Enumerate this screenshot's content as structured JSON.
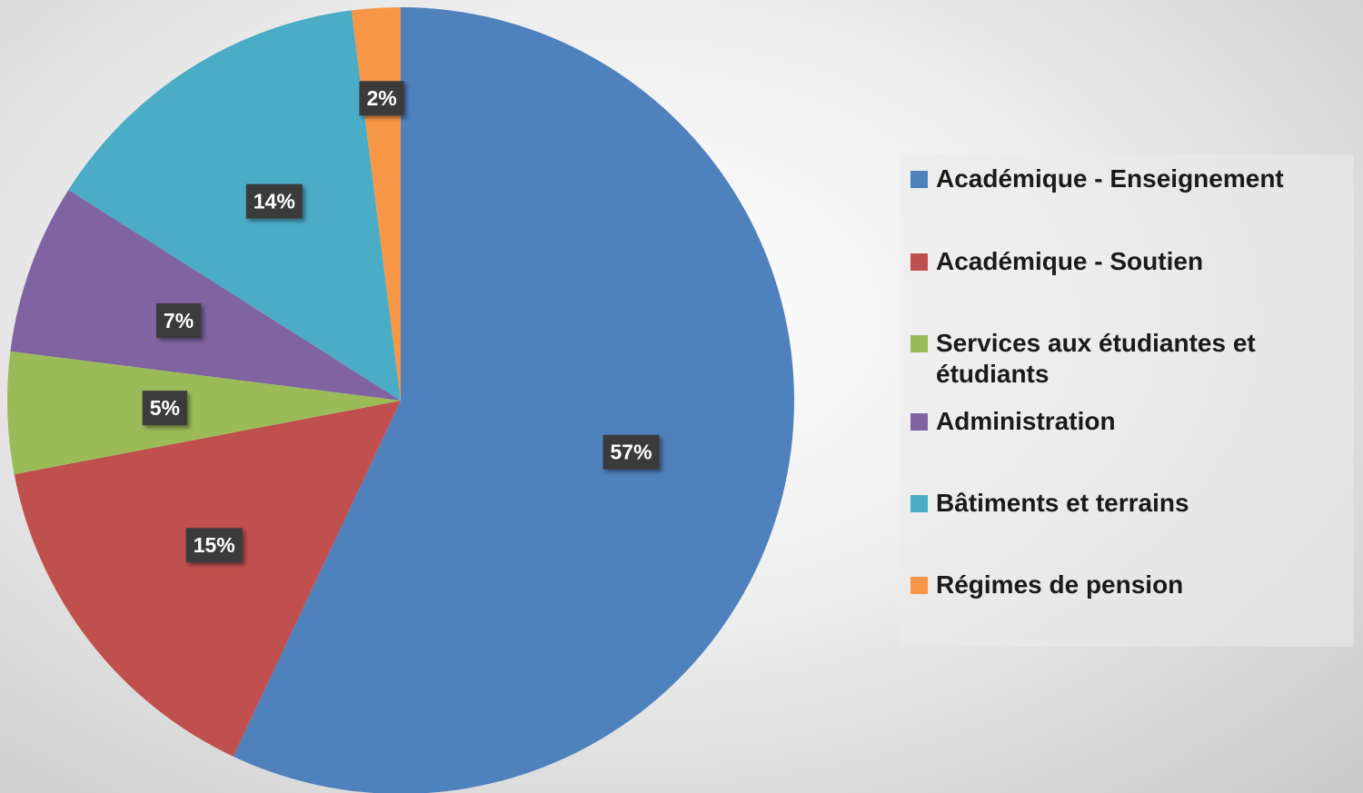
{
  "chart_data": {
    "type": "pie",
    "categories": [
      "Académique - Enseignement",
      "Académique - Soutien",
      "Services aux étudiantes et étudiants",
      "Administration",
      "Bâtiments et terrains",
      "Régimes de pension"
    ],
    "values": [
      57,
      15,
      5,
      7,
      14,
      2
    ],
    "value_labels": [
      "57%",
      "15%",
      "5%",
      "7%",
      "14%",
      "2%"
    ],
    "colors": [
      "#4f81bd",
      "#c0504d",
      "#9bbb59",
      "#8064a2",
      "#4bacc6",
      "#f79646"
    ],
    "legend": "right"
  }
}
